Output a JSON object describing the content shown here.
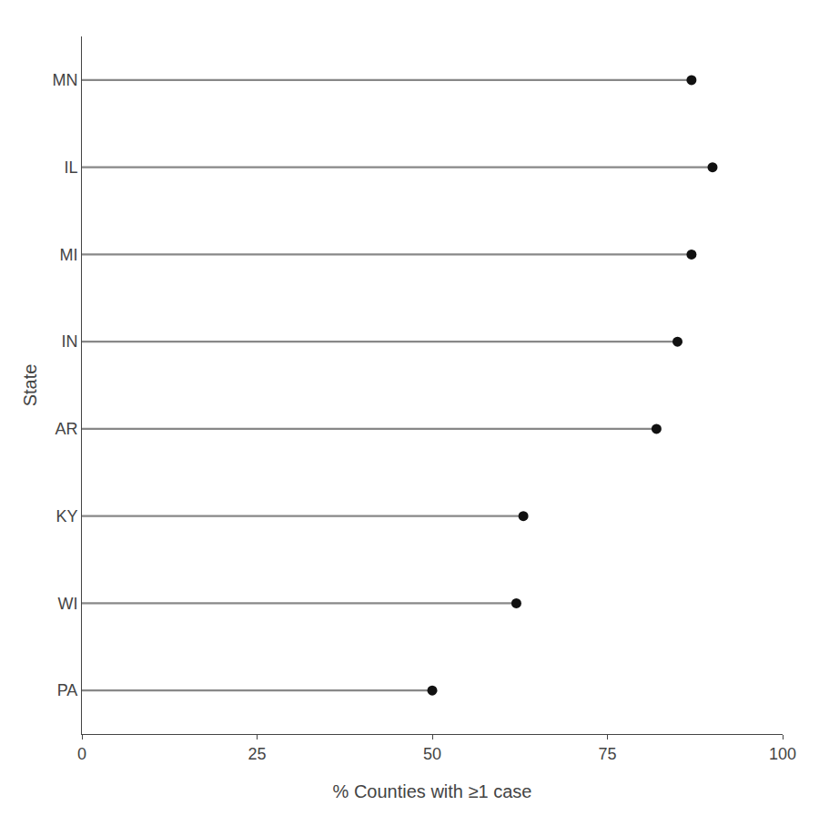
{
  "chart_data": {
    "type": "lollipop",
    "orientation": "horizontal",
    "categories": [
      "PA",
      "WI",
      "KY",
      "AR",
      "IN",
      "MI",
      "IL",
      "MN"
    ],
    "series": [
      {
        "type": "bar",
        "color": "#888888",
        "values": [
          50,
          62,
          63,
          82,
          85,
          87,
          90,
          87
        ]
      },
      {
        "type": "scatter",
        "color": "#111111",
        "values": [
          50,
          62,
          63,
          82,
          85,
          87,
          90,
          87
        ]
      }
    ],
    "xlabel": "% Counties with ≥1 case",
    "ylabel": "State",
    "xlim": [
      0,
      100
    ],
    "xticks": [
      0,
      25,
      50,
      75,
      100
    ],
    "grid": false
  }
}
